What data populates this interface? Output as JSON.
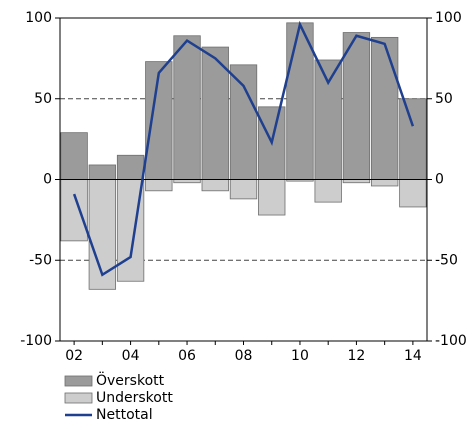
{
  "chart_data": {
    "type": "bar",
    "categories": [
      "02",
      null,
      "04",
      null,
      "06",
      null,
      "08",
      null,
      "10",
      null,
      "12",
      null,
      "14"
    ],
    "series": [
      {
        "name": "Överskott",
        "color": "#9b9b9b",
        "values": [
          29,
          9,
          15,
          73,
          89,
          82,
          71,
          45,
          97,
          74,
          91,
          88,
          50
        ]
      },
      {
        "name": "Underskott",
        "color": "#cdcdcd",
        "values": [
          -38,
          -68,
          -63,
          -7,
          -2,
          -7,
          -12,
          -22,
          -1,
          -14,
          -2,
          -4,
          -17
        ]
      },
      {
        "name": "Nettotal",
        "color": "#1f3f8f",
        "type": "line",
        "values": [
          -9,
          -59,
          -48,
          66,
          86,
          75,
          58,
          23,
          96,
          60,
          89,
          84,
          33
        ]
      }
    ],
    "ylim": [
      -100,
      100
    ],
    "yticks": [
      -100,
      -50,
      0,
      50,
      100
    ],
    "y2lim": [
      -100,
      100
    ],
    "y2ticks": [
      -100,
      -50,
      0,
      50,
      100
    ],
    "grid": true,
    "legend": "bottom-left"
  }
}
